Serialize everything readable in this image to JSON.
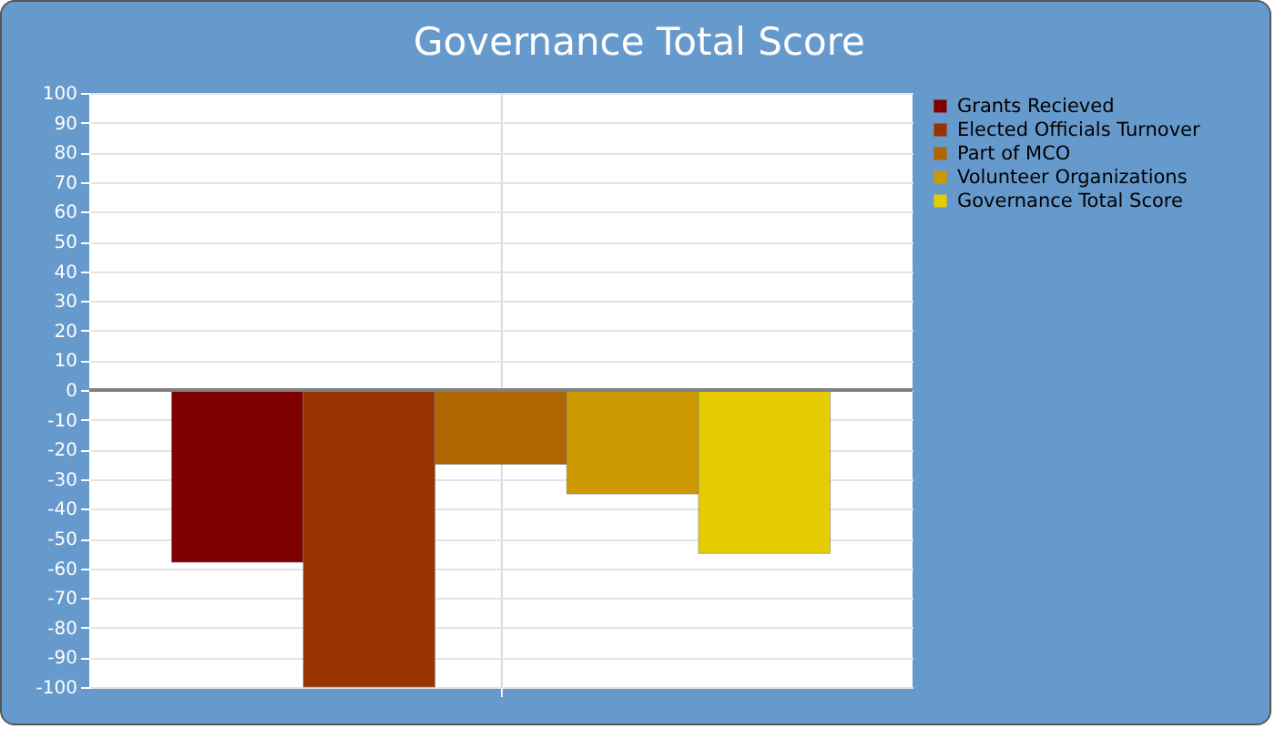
{
  "chart_data": {
    "type": "bar",
    "title": "Governance Total Score",
    "categories": [
      null
    ],
    "series": [
      {
        "name": "Grants Recieved",
        "color": "#800000",
        "values": [
          -58
        ]
      },
      {
        "name": "Elected Officials Turnover",
        "color": "#993300",
        "values": [
          -100
        ]
      },
      {
        "name": "Part of MCO",
        "color": "#b06600",
        "values": [
          -25
        ]
      },
      {
        "name": "Volunteer Organizations",
        "color": "#cc9900",
        "values": [
          -35
        ]
      },
      {
        "name": "Governance Total Score",
        "color": "#e5cc00",
        "values": [
          -55
        ]
      }
    ],
    "ylim": [
      -100,
      100
    ],
    "yticks": [
      -100,
      -90,
      -80,
      -70,
      -60,
      -50,
      -40,
      -30,
      -20,
      -10,
      0,
      10,
      20,
      30,
      40,
      50,
      60,
      70,
      80,
      90,
      100
    ],
    "grid": true,
    "legend": "top right",
    "ref_lines": [
      {
        "axis": "y",
        "value": 0,
        "color": "#808080"
      }
    ]
  }
}
